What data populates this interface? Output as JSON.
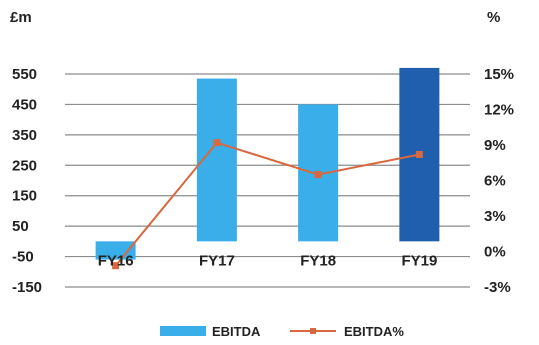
{
  "chart_data": {
    "type": "bar+line",
    "categories": [
      "FY16",
      "FY17",
      "FY18",
      "FY19"
    ],
    "series": [
      {
        "name": "EBITDA",
        "type": "bar",
        "axis": "left",
        "values": [
          -60,
          535,
          450,
          570
        ],
        "colors": [
          "#3aaee8",
          "#3aaee8",
          "#3aaee8",
          "#1f5fae"
        ]
      },
      {
        "name": "EBITDA%",
        "type": "line",
        "axis": "right",
        "values": [
          -1.2,
          9.2,
          6.5,
          8.2
        ],
        "color": "#d9683e"
      }
    ],
    "y_left": {
      "unit": "£m",
      "ticks": [
        550,
        450,
        350,
        250,
        150,
        50,
        -50,
        -150
      ],
      "tick_labels": [
        "550",
        "450",
        "350",
        "250",
        "150",
        "50",
        "-50",
        "-150"
      ],
      "range": [
        -150,
        550
      ]
    },
    "y_right": {
      "unit": "%",
      "ticks": [
        15,
        12,
        9,
        6,
        3,
        0,
        -3
      ],
      "tick_labels": [
        "15%",
        "12%",
        "9%",
        "6%",
        "3%",
        "0%",
        "-3%"
      ],
      "range": [
        -3,
        15
      ]
    },
    "grid": true,
    "legend_position": "bottom"
  }
}
